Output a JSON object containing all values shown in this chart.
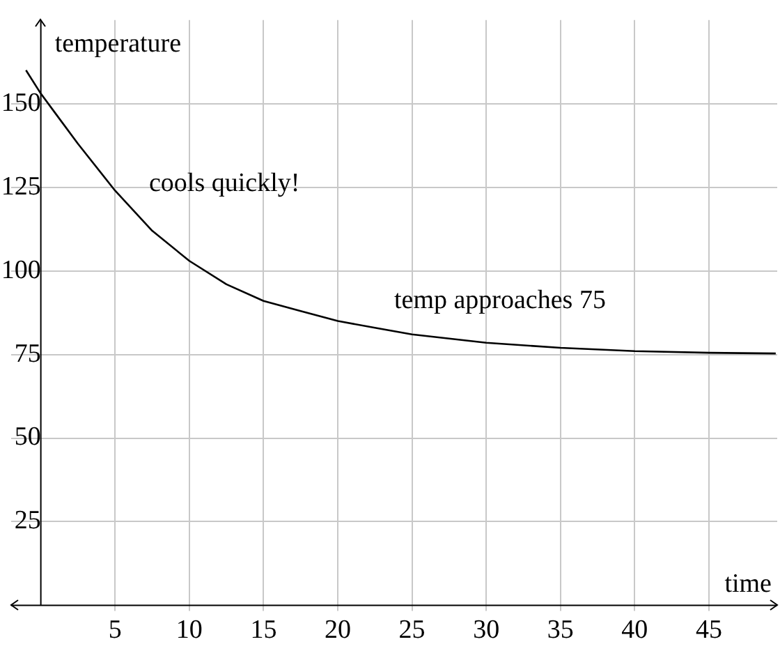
{
  "chart_data": {
    "type": "line",
    "xlabel": "time",
    "ylabel": "temperature",
    "x": [
      -1,
      0,
      1,
      2.5,
      5,
      7.5,
      10,
      12.5,
      15,
      17.5,
      20,
      22.5,
      25,
      30,
      35,
      40,
      45,
      49.5
    ],
    "series": [
      {
        "color": "#000000",
        "values": [
          160,
          153,
          147,
          138,
          124,
          112,
          103,
          96,
          91,
          88,
          85,
          83,
          81,
          78.5,
          77,
          76,
          75.5,
          75.3
        ]
      }
    ],
    "xlim": [
      -2,
      49.6
    ],
    "ylim": [
      0,
      175
    ],
    "xticks": [
      5,
      10,
      15,
      20,
      25,
      30,
      35,
      40,
      45
    ],
    "yticks": [
      25,
      50,
      75,
      100,
      125,
      150
    ],
    "grid": true,
    "legend": false,
    "marker": "none",
    "line_style": "solid",
    "annotations": [
      "cools quickly!",
      "temp approaches 75"
    ]
  }
}
